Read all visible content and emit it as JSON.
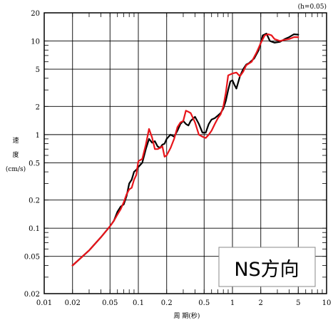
{
  "chart_data": {
    "type": "line",
    "corner_note": "(h=0.05)",
    "xlabel": "周 期(秒)",
    "ylabel_chars": [
      "速",
      "度"
    ],
    "yunit": "(cm/s)",
    "legend_box": "NS方向",
    "xscale": "log",
    "yscale": "log",
    "xlim": [
      0.01,
      10
    ],
    "ylim": [
      0.02,
      20
    ],
    "grid": true,
    "xticks": [
      {
        "v": 0.01,
        "l": "0.01"
      },
      {
        "v": 0.02,
        "l": "0.02"
      },
      {
        "v": 0.05,
        "l": "0.05"
      },
      {
        "v": 0.1,
        "l": "0.1"
      },
      {
        "v": 0.2,
        "l": "0.2"
      },
      {
        "v": 0.5,
        "l": "0.5"
      },
      {
        "v": 1,
        "l": "1"
      },
      {
        "v": 2,
        "l": "2"
      },
      {
        "v": 5,
        "l": "5"
      },
      {
        "v": 10,
        "l": "10"
      }
    ],
    "yticks": [
      {
        "v": 0.02,
        "l": "0.02"
      },
      {
        "v": 0.05,
        "l": "0.05"
      },
      {
        "v": 0.1,
        "l": "0.1"
      },
      {
        "v": 0.2,
        "l": "0.2"
      },
      {
        "v": 0.5,
        "l": "0.5"
      },
      {
        "v": 1,
        "l": "1"
      },
      {
        "v": 2,
        "l": "2"
      },
      {
        "v": 5,
        "l": "5"
      },
      {
        "v": 10,
        "l": "10"
      },
      {
        "v": 20,
        "l": "20"
      }
    ],
    "series": [
      {
        "color": "#000000",
        "points": [
          [
            0.02,
            0.04
          ],
          [
            0.03,
            0.058
          ],
          [
            0.04,
            0.08
          ],
          [
            0.05,
            0.105
          ],
          [
            0.055,
            0.12
          ],
          [
            0.06,
            0.15
          ],
          [
            0.065,
            0.17
          ],
          [
            0.07,
            0.18
          ],
          [
            0.075,
            0.22
          ],
          [
            0.08,
            0.3
          ],
          [
            0.085,
            0.33
          ],
          [
            0.09,
            0.4
          ],
          [
            0.095,
            0.42
          ],
          [
            0.1,
            0.45
          ],
          [
            0.11,
            0.5
          ],
          [
            0.12,
            0.7
          ],
          [
            0.13,
            0.9
          ],
          [
            0.14,
            0.82
          ],
          [
            0.15,
            0.85
          ],
          [
            0.16,
            0.75
          ],
          [
            0.17,
            0.72
          ],
          [
            0.18,
            0.78
          ],
          [
            0.19,
            0.8
          ],
          [
            0.2,
            0.9
          ],
          [
            0.21,
            0.95
          ],
          [
            0.22,
            1.0
          ],
          [
            0.24,
            0.95
          ],
          [
            0.26,
            1.1
          ],
          [
            0.28,
            1.3
          ],
          [
            0.3,
            1.4
          ],
          [
            0.32,
            1.3
          ],
          [
            0.34,
            1.25
          ],
          [
            0.36,
            1.4
          ],
          [
            0.4,
            1.55
          ],
          [
            0.44,
            1.3
          ],
          [
            0.48,
            1.05
          ],
          [
            0.52,
            1.05
          ],
          [
            0.56,
            1.3
          ],
          [
            0.6,
            1.45
          ],
          [
            0.65,
            1.5
          ],
          [
            0.7,
            1.6
          ],
          [
            0.75,
            1.7
          ],
          [
            0.8,
            1.9
          ],
          [
            0.85,
            2.3
          ],
          [
            0.9,
            3.0
          ],
          [
            0.95,
            3.7
          ],
          [
            1.0,
            3.8
          ],
          [
            1.05,
            3.4
          ],
          [
            1.1,
            3.1
          ],
          [
            1.2,
            4.2
          ],
          [
            1.3,
            5.0
          ],
          [
            1.4,
            5.6
          ],
          [
            1.5,
            5.8
          ],
          [
            1.7,
            6.5
          ],
          [
            1.9,
            8.0
          ],
          [
            2.1,
            11.5
          ],
          [
            2.3,
            12.0
          ],
          [
            2.5,
            10.0
          ],
          [
            2.8,
            9.6
          ],
          [
            3.2,
            9.8
          ],
          [
            3.6,
            10.5
          ],
          [
            4.0,
            11.0
          ],
          [
            4.5,
            11.8
          ],
          [
            5.0,
            11.7
          ]
        ]
      },
      {
        "color": "#e8141a",
        "points": [
          [
            0.02,
            0.04
          ],
          [
            0.03,
            0.058
          ],
          [
            0.04,
            0.08
          ],
          [
            0.05,
            0.105
          ],
          [
            0.055,
            0.12
          ],
          [
            0.06,
            0.14
          ],
          [
            0.065,
            0.16
          ],
          [
            0.07,
            0.19
          ],
          [
            0.075,
            0.23
          ],
          [
            0.08,
            0.26
          ],
          [
            0.085,
            0.27
          ],
          [
            0.09,
            0.33
          ],
          [
            0.095,
            0.37
          ],
          [
            0.1,
            0.52
          ],
          [
            0.11,
            0.55
          ],
          [
            0.12,
            0.78
          ],
          [
            0.13,
            1.15
          ],
          [
            0.14,
            0.93
          ],
          [
            0.15,
            0.7
          ],
          [
            0.16,
            0.7
          ],
          [
            0.17,
            0.72
          ],
          [
            0.18,
            0.75
          ],
          [
            0.19,
            0.58
          ],
          [
            0.2,
            0.6
          ],
          [
            0.22,
            0.72
          ],
          [
            0.24,
            0.9
          ],
          [
            0.26,
            1.2
          ],
          [
            0.28,
            1.35
          ],
          [
            0.3,
            1.4
          ],
          [
            0.32,
            1.8
          ],
          [
            0.34,
            1.75
          ],
          [
            0.36,
            1.7
          ],
          [
            0.4,
            1.35
          ],
          [
            0.44,
            1.0
          ],
          [
            0.48,
            0.95
          ],
          [
            0.52,
            0.92
          ],
          [
            0.56,
            1.0
          ],
          [
            0.6,
            1.1
          ],
          [
            0.65,
            1.3
          ],
          [
            0.7,
            1.5
          ],
          [
            0.75,
            1.65
          ],
          [
            0.8,
            2.0
          ],
          [
            0.85,
            2.8
          ],
          [
            0.9,
            4.3
          ],
          [
            1.0,
            4.5
          ],
          [
            1.1,
            4.6
          ],
          [
            1.2,
            4.2
          ],
          [
            1.3,
            4.7
          ],
          [
            1.4,
            5.5
          ],
          [
            1.6,
            6.0
          ],
          [
            1.8,
            7.5
          ],
          [
            2.0,
            9.5
          ],
          [
            2.2,
            11.5
          ],
          [
            2.4,
            11.8
          ],
          [
            2.6,
            11.5
          ],
          [
            2.8,
            10.5
          ],
          [
            3.2,
            10.0
          ],
          [
            3.6,
            10.3
          ],
          [
            4.0,
            10.5
          ],
          [
            4.5,
            11.0
          ],
          [
            5.0,
            11.0
          ]
        ]
      }
    ]
  }
}
